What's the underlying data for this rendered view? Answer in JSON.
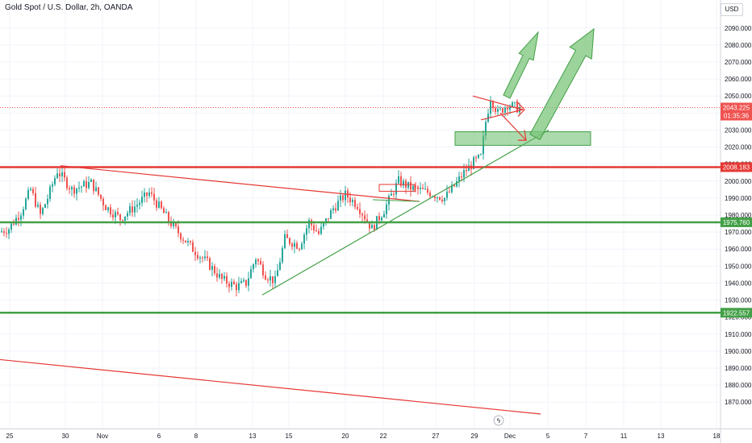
{
  "header": {
    "title": "Gold Spot / U.S. Dollar, 2h, OANDA",
    "currency": "USD"
  },
  "colors": {
    "up": "#26a69a",
    "down": "#ef5350",
    "red_line": "#e53935",
    "green_line": "#43a047",
    "green_zone": "#66bb6a",
    "arrow_green": "#7bc67b",
    "grid": "#f0f3fa"
  },
  "chart_data": {
    "type": "candlestick",
    "title": "Gold Spot / U.S. Dollar, 2h, OANDA",
    "ylim": [
      1863,
      2097
    ],
    "y_ticks": [
      1870,
      1880,
      1890,
      1900,
      1910,
      1920,
      1930,
      1940,
      1950,
      1960,
      1970,
      1980,
      1990,
      2000,
      2010,
      2020,
      2030,
      2040,
      2050,
      2060,
      2070,
      2080,
      2090
    ],
    "y_tick_labels": [
      "1870.000",
      "1880.000",
      "1890.000",
      "1900.000",
      "1910.000",
      "1920.000",
      "1930.000",
      "1940.000",
      "1950.000",
      "1960.000",
      "1970.000",
      "1980.000",
      "1990.000",
      "2000.000",
      "2010.000",
      "2020.000",
      "2030.000",
      "2040.000",
      "2050.000",
      "2060.000",
      "2070.000",
      "2080.000",
      "2090.000"
    ],
    "x_tick_labels": [
      "25",
      "30",
      "Nov",
      "6",
      "8",
      "13",
      "15",
      "20",
      "22",
      "27",
      "29",
      "Dec",
      "5",
      "7",
      "11",
      "13",
      "18"
    ],
    "candle_count": 215,
    "price_path": [
      [
        0,
        1970
      ],
      [
        4,
        1972
      ],
      [
        9,
        1982
      ],
      [
        13,
        1995
      ],
      [
        17,
        1980
      ],
      [
        20,
        1990
      ],
      [
        24,
        2006
      ],
      [
        30,
        1995
      ],
      [
        38,
        1999
      ],
      [
        44,
        1985
      ],
      [
        50,
        1978
      ],
      [
        56,
        1985
      ],
      [
        62,
        1993
      ],
      [
        66,
        1985
      ],
      [
        72,
        1973
      ],
      [
        80,
        1960
      ],
      [
        86,
        1952
      ],
      [
        92,
        1942
      ],
      [
        98,
        1938
      ],
      [
        102,
        1940
      ],
      [
        106,
        1955
      ],
      [
        110,
        1945
      ],
      [
        114,
        1941
      ],
      [
        118,
        1966
      ],
      [
        124,
        1962
      ],
      [
        128,
        1976
      ],
      [
        132,
        1969
      ],
      [
        138,
        1984
      ],
      [
        143,
        1992
      ],
      [
        148,
        1986
      ],
      [
        154,
        1972
      ],
      [
        159,
        1983
      ],
      [
        165,
        2000
      ],
      [
        170,
        1996
      ],
      [
        178,
        1993
      ],
      [
        184,
        1990
      ],
      [
        188,
        1997
      ],
      [
        192,
        2005
      ],
      [
        196,
        2011
      ],
      [
        199,
        2014
      ],
      [
        201,
        2035
      ],
      [
        203,
        2049
      ],
      [
        206,
        2040
      ],
      [
        210,
        2045
      ],
      [
        214,
        2043
      ]
    ],
    "horizontal_levels": [
      {
        "price": 2008.183,
        "label": "2008.183",
        "color": "red"
      },
      {
        "price": 1975.76,
        "label": "1975.760",
        "color": "green"
      },
      {
        "price": 1922.557,
        "label": "1922.557",
        "color": "green"
      }
    ],
    "last_price": {
      "price": 2043.225,
      "label": "2043.225",
      "countdown": "01:35:36"
    },
    "grid": true
  }
}
